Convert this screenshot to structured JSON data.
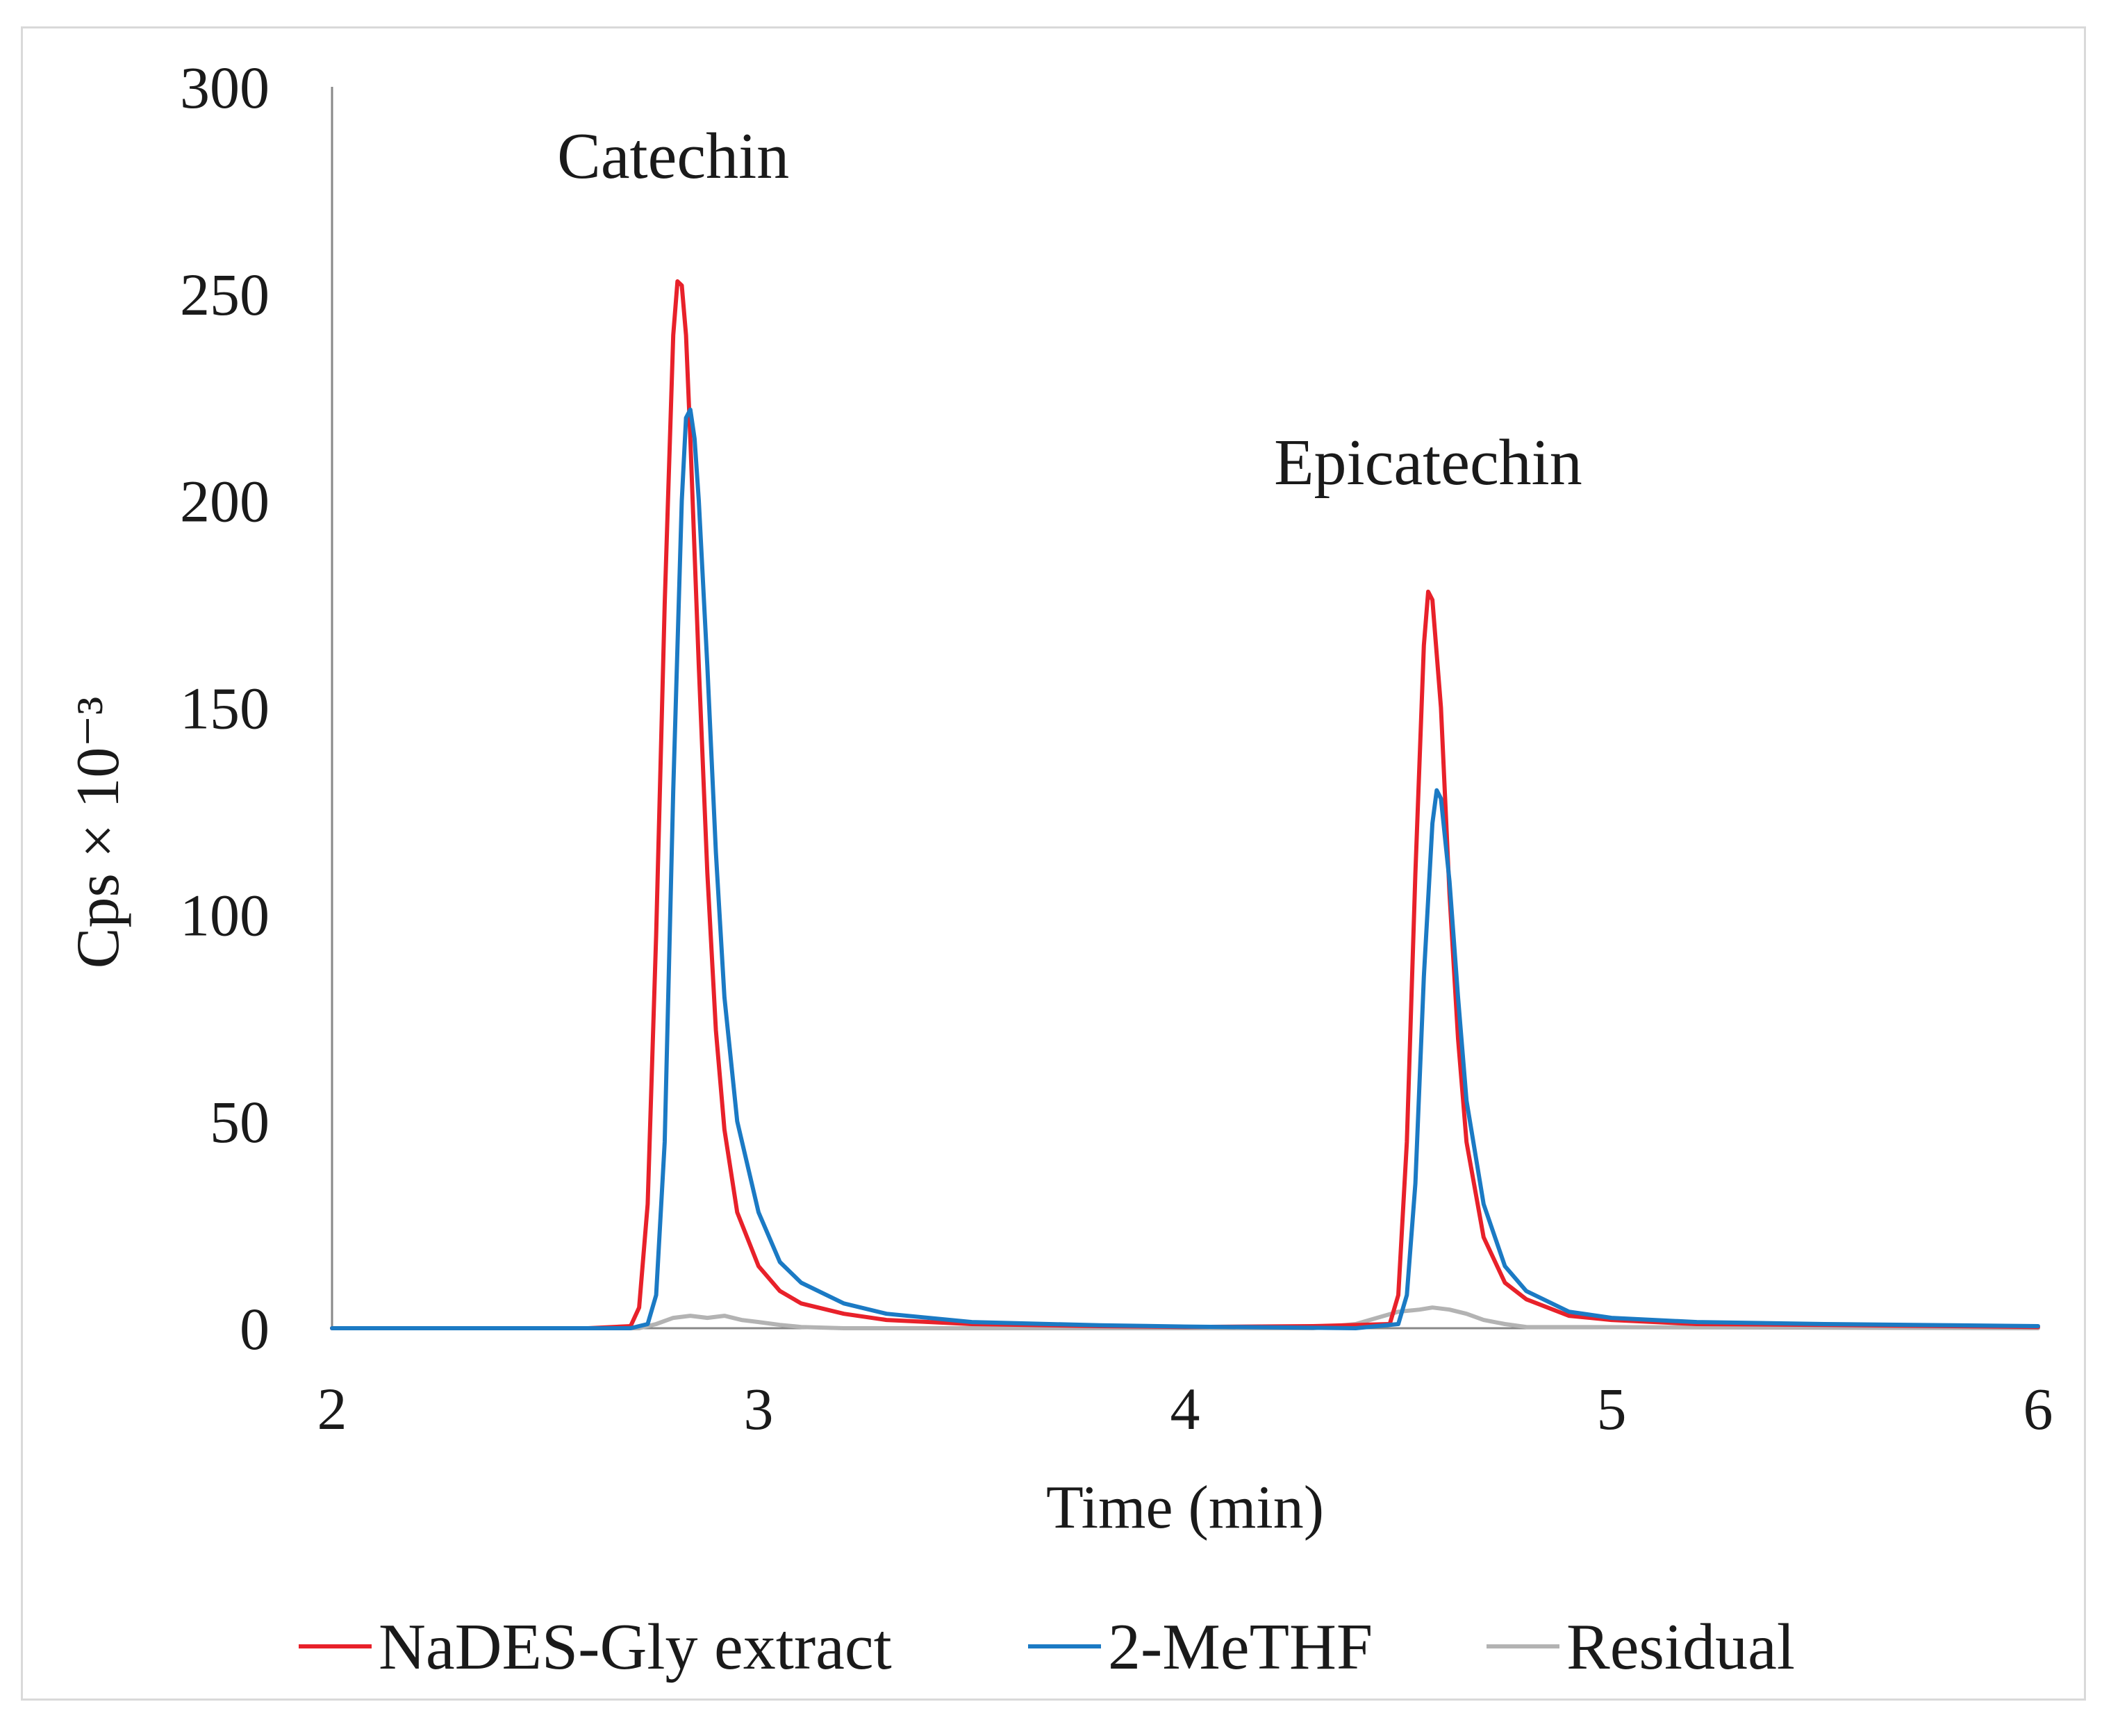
{
  "chart_data": {
    "type": "line",
    "title": "",
    "xlabel": "Time (min)",
    "ylabel": "Cps × 10⁻³",
    "xlim": [
      2,
      6
    ],
    "ylim": [
      0,
      300
    ],
    "x_ticks": [
      2,
      3,
      4,
      5,
      6
    ],
    "y_ticks": [
      0,
      50,
      100,
      150,
      200,
      250,
      300
    ],
    "x_tick_labels": [
      "2",
      "3",
      "4",
      "5",
      "6"
    ],
    "y_tick_labels": [
      "0",
      "50",
      "100",
      "150",
      "200",
      "250",
      "300"
    ],
    "grid": false,
    "legend_position": "bottom",
    "annotations": [
      {
        "text": "Catechin",
        "x": 2.8,
        "y": 278
      },
      {
        "text": "Epicatechin",
        "x": 4.57,
        "y": 204
      }
    ],
    "series": [
      {
        "name": "NaDES-Gly extract",
        "color": "#e8212a",
        "x": [
          2.0,
          2.6,
          2.7,
          2.72,
          2.74,
          2.76,
          2.78,
          2.8,
          2.81,
          2.82,
          2.83,
          2.84,
          2.86,
          2.88,
          2.9,
          2.92,
          2.95,
          3.0,
          3.05,
          3.1,
          3.2,
          3.3,
          3.5,
          3.8,
          4.0,
          4.3,
          4.48,
          4.5,
          4.52,
          4.54,
          4.56,
          4.57,
          4.58,
          4.6,
          4.62,
          4.64,
          4.66,
          4.7,
          4.75,
          4.8,
          4.9,
          5.0,
          5.2,
          5.5,
          5.8,
          6.0
        ],
        "y": [
          0,
          0,
          0.5,
          5,
          30,
          95,
          175,
          240,
          253,
          252,
          240,
          215,
          160,
          110,
          72,
          48,
          28,
          15,
          9,
          6,
          3.5,
          2,
          1,
          0.5,
          0.3,
          0.5,
          1,
          8,
          45,
          110,
          165,
          178,
          176,
          150,
          105,
          70,
          45,
          22,
          11,
          7,
          3,
          2,
          1,
          0.8,
          0.5,
          0.3
        ]
      },
      {
        "name": "2-MeTHF",
        "color": "#1b7ac4",
        "x": [
          2.0,
          2.7,
          2.74,
          2.76,
          2.78,
          2.8,
          2.82,
          2.83,
          2.84,
          2.85,
          2.86,
          2.88,
          2.9,
          2.92,
          2.95,
          3.0,
          3.05,
          3.1,
          3.2,
          3.3,
          3.5,
          3.8,
          4.0,
          4.4,
          4.5,
          4.52,
          4.54,
          4.56,
          4.58,
          4.59,
          4.6,
          4.62,
          4.64,
          4.66,
          4.7,
          4.75,
          4.8,
          4.9,
          5.0,
          5.2,
          5.5,
          5.8,
          6.0
        ],
        "y": [
          0,
          0,
          1,
          8,
          45,
          130,
          200,
          220,
          222,
          215,
          200,
          160,
          115,
          80,
          50,
          28,
          16,
          11,
          6,
          3.5,
          1.5,
          0.7,
          0.4,
          0,
          1,
          8,
          35,
          85,
          122,
          130,
          128,
          108,
          80,
          55,
          30,
          15,
          9,
          4,
          2.5,
          1.5,
          1,
          0.7,
          0.5
        ]
      },
      {
        "name": "Residual",
        "color": "#b3b3b3",
        "x": [
          2.0,
          2.72,
          2.76,
          2.8,
          2.84,
          2.88,
          2.92,
          2.96,
          3.0,
          3.05,
          3.1,
          3.2,
          4.3,
          4.4,
          4.45,
          4.5,
          4.55,
          4.58,
          4.62,
          4.66,
          4.7,
          4.75,
          4.8,
          6.0
        ],
        "y": [
          0,
          0,
          1,
          2.5,
          3,
          2.5,
          3,
          2,
          1.5,
          0.8,
          0.3,
          0,
          0,
          1,
          2.5,
          4,
          4.5,
          5,
          4.5,
          3.5,
          2,
          1,
          0.3,
          0
        ]
      }
    ]
  }
}
